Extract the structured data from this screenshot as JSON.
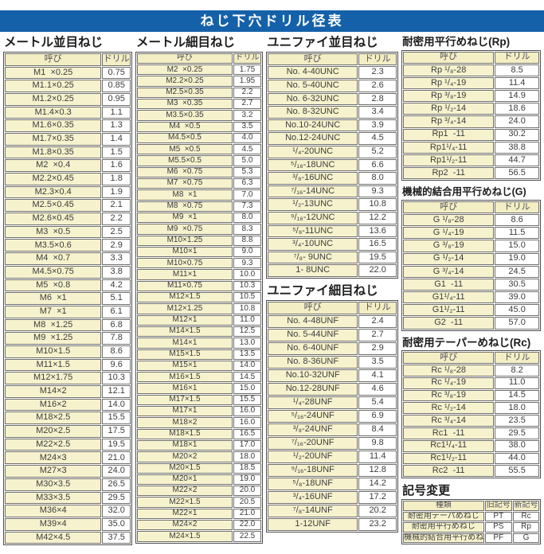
{
  "title": "ねじ下穴ドリル径表",
  "colors": {
    "banner_blue": "#1561a9",
    "cell_cream": "#f6f2cd",
    "border_gray": "#707070"
  },
  "col_headers": {
    "name": "呼び",
    "drill": "ドリル"
  },
  "sections": {
    "metric_coarse": {
      "heading": "メートル並目ねじ",
      "rows": [
        [
          "M1  ×0.25",
          "0.75"
        ],
        [
          "M1.1×0.25",
          "0.85"
        ],
        [
          "M1.2×0.25",
          "0.95"
        ],
        [
          "M1.4×0.3",
          "1.1"
        ],
        [
          "M1.6×0.35",
          "1.3"
        ],
        [
          "M1.7×0.35",
          "1.4"
        ],
        [
          "M1.8×0.35",
          "1.5"
        ],
        [
          "M2  ×0.4",
          "1.6"
        ],
        [
          "M2.2×0.45",
          "1.8"
        ],
        [
          "M2.3×0.4",
          "1.9"
        ],
        [
          "M2.5×0.45",
          "2.1"
        ],
        [
          "M2.6×0.45",
          "2.2"
        ],
        [
          "M3  ×0.5",
          "2.5"
        ],
        [
          "M3.5×0.6",
          "2.9"
        ],
        [
          "M4  ×0.7",
          "3.3"
        ],
        [
          "M4.5×0.75",
          "3.8"
        ],
        [
          "M5  ×0.8",
          "4.2"
        ],
        [
          "M6  ×1",
          "5.1"
        ],
        [
          "M7  ×1",
          "6.1"
        ],
        [
          "M8  ×1.25",
          "6.8"
        ],
        [
          "M9  ×1.25",
          "7.8"
        ],
        [
          "M10×1.5",
          "8.6"
        ],
        [
          "M11×1.5",
          "9.6"
        ],
        [
          "M12×1.75",
          "10.3"
        ],
        [
          "M14×2",
          "12.1"
        ],
        [
          "M16×2",
          "14.0"
        ],
        [
          "M18×2.5",
          "15.5"
        ],
        [
          "M20×2.5",
          "17.5"
        ],
        [
          "M22×2.5",
          "19.5"
        ],
        [
          "M24×3",
          "21.0"
        ],
        [
          "M27×3",
          "24.0"
        ],
        [
          "M30×3.5",
          "26.5"
        ],
        [
          "M33×3.5",
          "29.5"
        ],
        [
          "M36×4",
          "32.0"
        ],
        [
          "M39×4",
          "35.0"
        ],
        [
          "M42×4.5",
          "37.5"
        ]
      ]
    },
    "metric_fine": {
      "heading": "メートル細目ねじ",
      "rows": [
        [
          "M2  ×0.25",
          "1.75"
        ],
        [
          "M2.2×0.25",
          "1.95"
        ],
        [
          "M2.5×0.35",
          "2.2"
        ],
        [
          "M3  ×0.35",
          "2.7"
        ],
        [
          "M3.5×0.35",
          "3.2"
        ],
        [
          "M4  ×0.5",
          "3.5"
        ],
        [
          "M4.5×0.5",
          "4.0"
        ],
        [
          "M5  ×0.5",
          "4.5"
        ],
        [
          "M5.5×0.5",
          "5.0"
        ],
        [
          "M6  ×0.75",
          "5.3"
        ],
        [
          "M7  ×0.75",
          "6.3"
        ],
        [
          "M8  ×1",
          "7.0"
        ],
        [
          "M8  ×0.75",
          "7.3"
        ],
        [
          "M9  ×1",
          "8.0"
        ],
        [
          "M9  ×0.75",
          "8.3"
        ],
        [
          "M10×1.25",
          "8.8"
        ],
        [
          "M10×1",
          "9.0"
        ],
        [
          "M10×0.75",
          "9.3"
        ],
        [
          "M11×1",
          "10.0"
        ],
        [
          "M11×0.75",
          "10.3"
        ],
        [
          "M12×1.5",
          "10.5"
        ],
        [
          "M12×1.25",
          "10.8"
        ],
        [
          "M12×1",
          "11.0"
        ],
        [
          "M14×1.5",
          "12.5"
        ],
        [
          "M14×1",
          "13.0"
        ],
        [
          "M15×1.5",
          "13.5"
        ],
        [
          "M15×1",
          "14.0"
        ],
        [
          "M16×1.5",
          "14.5"
        ],
        [
          "M16×1",
          "15.0"
        ],
        [
          "M17×1.5",
          "15.5"
        ],
        [
          "M17×1",
          "16.0"
        ],
        [
          "M18×2",
          "16.0"
        ],
        [
          "M18×1.5",
          "16.5"
        ],
        [
          "M18×1",
          "17.0"
        ],
        [
          "M20×2",
          "18.0"
        ],
        [
          "M20×1.5",
          "18.5"
        ],
        [
          "M20×1",
          "19.0"
        ],
        [
          "M22×2",
          "20.0"
        ],
        [
          "M22×1.5",
          "20.5"
        ],
        [
          "M22×1",
          "21.0"
        ],
        [
          "M24×2",
          "22.0"
        ],
        [
          "M24×1.5",
          "22.5"
        ]
      ]
    },
    "unified_coarse": {
      "heading": "ユニファイ並目ねじ",
      "rows": [
        [
          "No. 4-40UNC",
          "2.3"
        ],
        [
          "No. 5-40UNC",
          "2.6"
        ],
        [
          "No. 6-32UNC",
          "2.8"
        ],
        [
          "No. 8-32UNC",
          "3.4"
        ],
        [
          "No.10-24UNC",
          "3.9"
        ],
        [
          "No.12-24UNC",
          "4.5"
        ],
        [
          "¹/₄-20UNC",
          "5.2"
        ],
        [
          "⁵/₁₆-18UNC",
          "6.6"
        ],
        [
          "³/₈-16UNC",
          "8.0"
        ],
        [
          "⁷/₁₆-14UNC",
          "9.3"
        ],
        [
          "¹/₂-13UNC",
          "10.8"
        ],
        [
          "⁹/₁₆-12UNC",
          "12.2"
        ],
        [
          "⁵/₈-11UNC",
          "13.6"
        ],
        [
          "³/₄-10UNC",
          "16.5"
        ],
        [
          "⁷/₈- 9UNC",
          "19.5"
        ],
        [
          "1- 8UNC",
          "22.0"
        ]
      ]
    },
    "unified_fine": {
      "heading": "ユニファイ細目ねじ",
      "rows": [
        [
          "No. 4-48UNF",
          "2.4"
        ],
        [
          "No. 5-44UNF",
          "2.7"
        ],
        [
          "No. 6-40UNF",
          "2.9"
        ],
        [
          "No. 8-36UNF",
          "3.5"
        ],
        [
          "No.10-32UNF",
          "4.1"
        ],
        [
          "No.12-28UNF",
          "4.6"
        ],
        [
          "¹/₄-28UNF",
          "5.4"
        ],
        [
          "⁵/₁₆-24UNF",
          "6.9"
        ],
        [
          "³/₈-24UNF",
          "8.4"
        ],
        [
          "⁷/₁₆-20UNF",
          "9.8"
        ],
        [
          "¹/₂-20UNF",
          "11.4"
        ],
        [
          "⁹/₁₆-18UNF",
          "12.8"
        ],
        [
          "⁵/₈-18UNF",
          "14.2"
        ],
        [
          "³/₄-16UNF",
          "17.2"
        ],
        [
          "⁷/₈-14UNF",
          "20.2"
        ],
        [
          "1-12UNF",
          "23.2"
        ]
      ]
    },
    "rp": {
      "heading": "耐密用平行めねじ(Rp)",
      "rows": [
        [
          "Rp ¹/₈-28",
          "8.5"
        ],
        [
          "Rp ¹/₄-19",
          "11.4"
        ],
        [
          "Rp ³/₈-19",
          "14.9"
        ],
        [
          "Rp ¹/₂-14",
          "18.6"
        ],
        [
          "Rp ³/₄-14",
          "24.0"
        ],
        [
          "Rp1  -11",
          "30.2"
        ],
        [
          "Rp1¹/₄-11",
          "38.8"
        ],
        [
          "Rp1¹/₂-11",
          "44.7"
        ],
        [
          "Rp2  -11",
          "56.5"
        ]
      ]
    },
    "g": {
      "heading": "機械的結合用平行めねじ(G)",
      "rows": [
        [
          "G ¹/₈-28",
          "8.6"
        ],
        [
          "G ¹/₄-19",
          "11.5"
        ],
        [
          "G ³/₈-19",
          "15.0"
        ],
        [
          "G ¹/₂-14",
          "19.0"
        ],
        [
          "G ³/₄-14",
          "24.5"
        ],
        [
          "G1  -11",
          "30.5"
        ],
        [
          "G1¹/₄-11",
          "39.0"
        ],
        [
          "G1¹/₂-11",
          "45.0"
        ],
        [
          "G2  -11",
          "57.0"
        ]
      ]
    },
    "rc": {
      "heading": "耐密用テーパーめねじ(Rc)",
      "rows": [
        [
          "Rc ¹/₈-28",
          "8.2"
        ],
        [
          "Rc ¹/₄-19",
          "11.0"
        ],
        [
          "Rc ³/₈-19",
          "14.5"
        ],
        [
          "Rc ¹/₂-14",
          "18.0"
        ],
        [
          "Rc ³/₄-14",
          "23.5"
        ],
        [
          "Rc1  -11",
          "29.5"
        ],
        [
          "Rc1¹/₄-11",
          "38.0"
        ],
        [
          "Rc1¹/₂-11",
          "44.0"
        ],
        [
          "Rc2  -11",
          "55.5"
        ]
      ]
    },
    "symbol_change": {
      "heading": "記号変更",
      "col_headers": [
        "種類",
        "旧記号",
        "新記号"
      ],
      "rows": [
        [
          "耐密用テーパめねじ",
          "PT",
          "Rc"
        ],
        [
          "耐密用平行めねじ",
          "PS",
          "Rp"
        ],
        [
          "機械的結合用平行めねじ",
          "PF",
          "G"
        ]
      ]
    }
  }
}
